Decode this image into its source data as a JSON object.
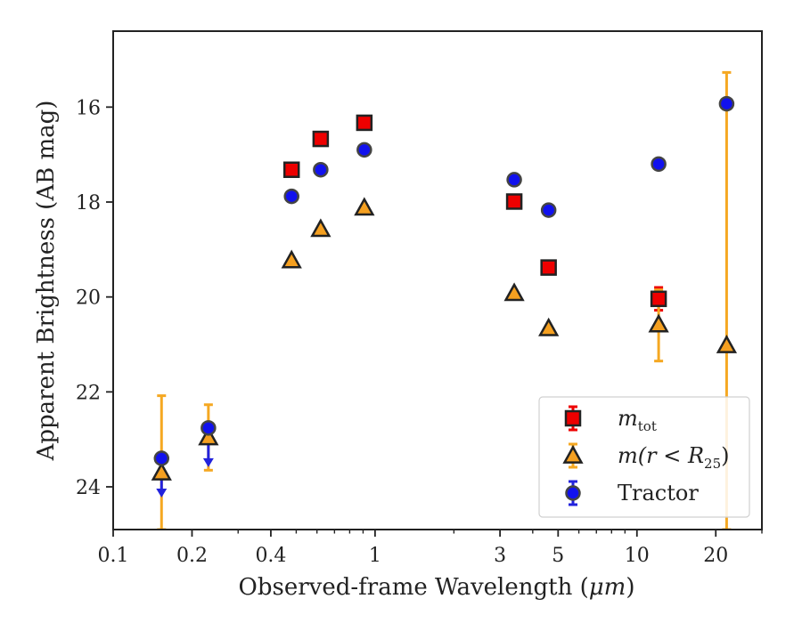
{
  "chart_data": {
    "type": "scatter",
    "title": "",
    "xlabel": "Observed-frame Wavelength (",
    "xlabel_unit": "μm",
    "xlabel_close": ")",
    "ylabel": "Apparent Brightness (AB mag)",
    "x_scale": "log",
    "y_inverted": true,
    "xlim": [
      0.1,
      30
    ],
    "ylim": [
      24.9,
      14.4
    ],
    "x_ticks": [
      {
        "value": 0.1,
        "label": "0.1"
      },
      {
        "value": 0.2,
        "label": "0.2"
      },
      {
        "value": 0.4,
        "label": "0.4"
      },
      {
        "value": 1,
        "label": "1"
      },
      {
        "value": 3,
        "label": "3"
      },
      {
        "value": 5,
        "label": "5"
      },
      {
        "value": 10,
        "label": "10"
      },
      {
        "value": 20,
        "label": "20"
      }
    ],
    "x_minor_ticks": [
      0.3,
      0.5,
      0.6,
      0.7,
      0.8,
      0.9,
      2,
      4,
      6,
      7,
      8,
      9,
      30
    ],
    "y_ticks": [
      {
        "value": 16,
        "label": "16"
      },
      {
        "value": 18,
        "label": "18"
      },
      {
        "value": 20,
        "label": "20"
      },
      {
        "value": 22,
        "label": "22"
      },
      {
        "value": 24,
        "label": "24"
      }
    ],
    "grid": false,
    "legend_position": "lower-right",
    "series": [
      {
        "name": "m_tot",
        "legend_main": "m",
        "legend_sub": "tot",
        "marker": "square",
        "color": "#ee0000",
        "ecolor": "#ee0000",
        "points": [
          {
            "x": 0.48,
            "y": 17.32
          },
          {
            "x": 0.62,
            "y": 16.67
          },
          {
            "x": 0.91,
            "y": 16.33
          },
          {
            "x": 3.4,
            "y": 17.99
          },
          {
            "x": 4.6,
            "y": 19.38
          },
          {
            "x": 12.1,
            "y": 20.04,
            "ylo": 19.8,
            "yhi": 20.28
          }
        ]
      },
      {
        "name": "m(r < R25)",
        "legend_main": "m(r < R",
        "legend_sub": "25",
        "legend_close": ")",
        "marker": "triangle",
        "color": "#f5a020",
        "ecolor": "#f5a822",
        "points": [
          {
            "x": 0.153,
            "y": 23.7,
            "ylo": 22.08,
            "yhi": 24.9
          },
          {
            "x": 0.231,
            "y": 22.96,
            "ylo": 22.27,
            "yhi": 23.65
          },
          {
            "x": 0.48,
            "y": 19.23
          },
          {
            "x": 0.62,
            "y": 18.57
          },
          {
            "x": 0.91,
            "y": 18.12
          },
          {
            "x": 3.4,
            "y": 19.92
          },
          {
            "x": 4.6,
            "y": 20.66
          },
          {
            "x": 12.1,
            "y": 20.58,
            "ylo": 19.85,
            "yhi": 21.35
          },
          {
            "x": 22.0,
            "y": 21.02,
            "ylo": 15.27,
            "yhi": 24.9
          }
        ]
      },
      {
        "name": "Tractor",
        "legend_main": "Tractor",
        "marker": "circle",
        "color": "#1111ee",
        "ecolor": "#2222dd",
        "points": [
          {
            "x": 0.153,
            "y": 23.4,
            "upper_limit": true
          },
          {
            "x": 0.231,
            "y": 22.76,
            "upper_limit": true
          },
          {
            "x": 0.48,
            "y": 17.88
          },
          {
            "x": 0.62,
            "y": 17.32
          },
          {
            "x": 0.91,
            "y": 16.9
          },
          {
            "x": 3.4,
            "y": 17.53
          },
          {
            "x": 4.6,
            "y": 18.17
          },
          {
            "x": 12.1,
            "y": 17.2
          },
          {
            "x": 22.0,
            "y": 15.93
          }
        ]
      }
    ]
  }
}
